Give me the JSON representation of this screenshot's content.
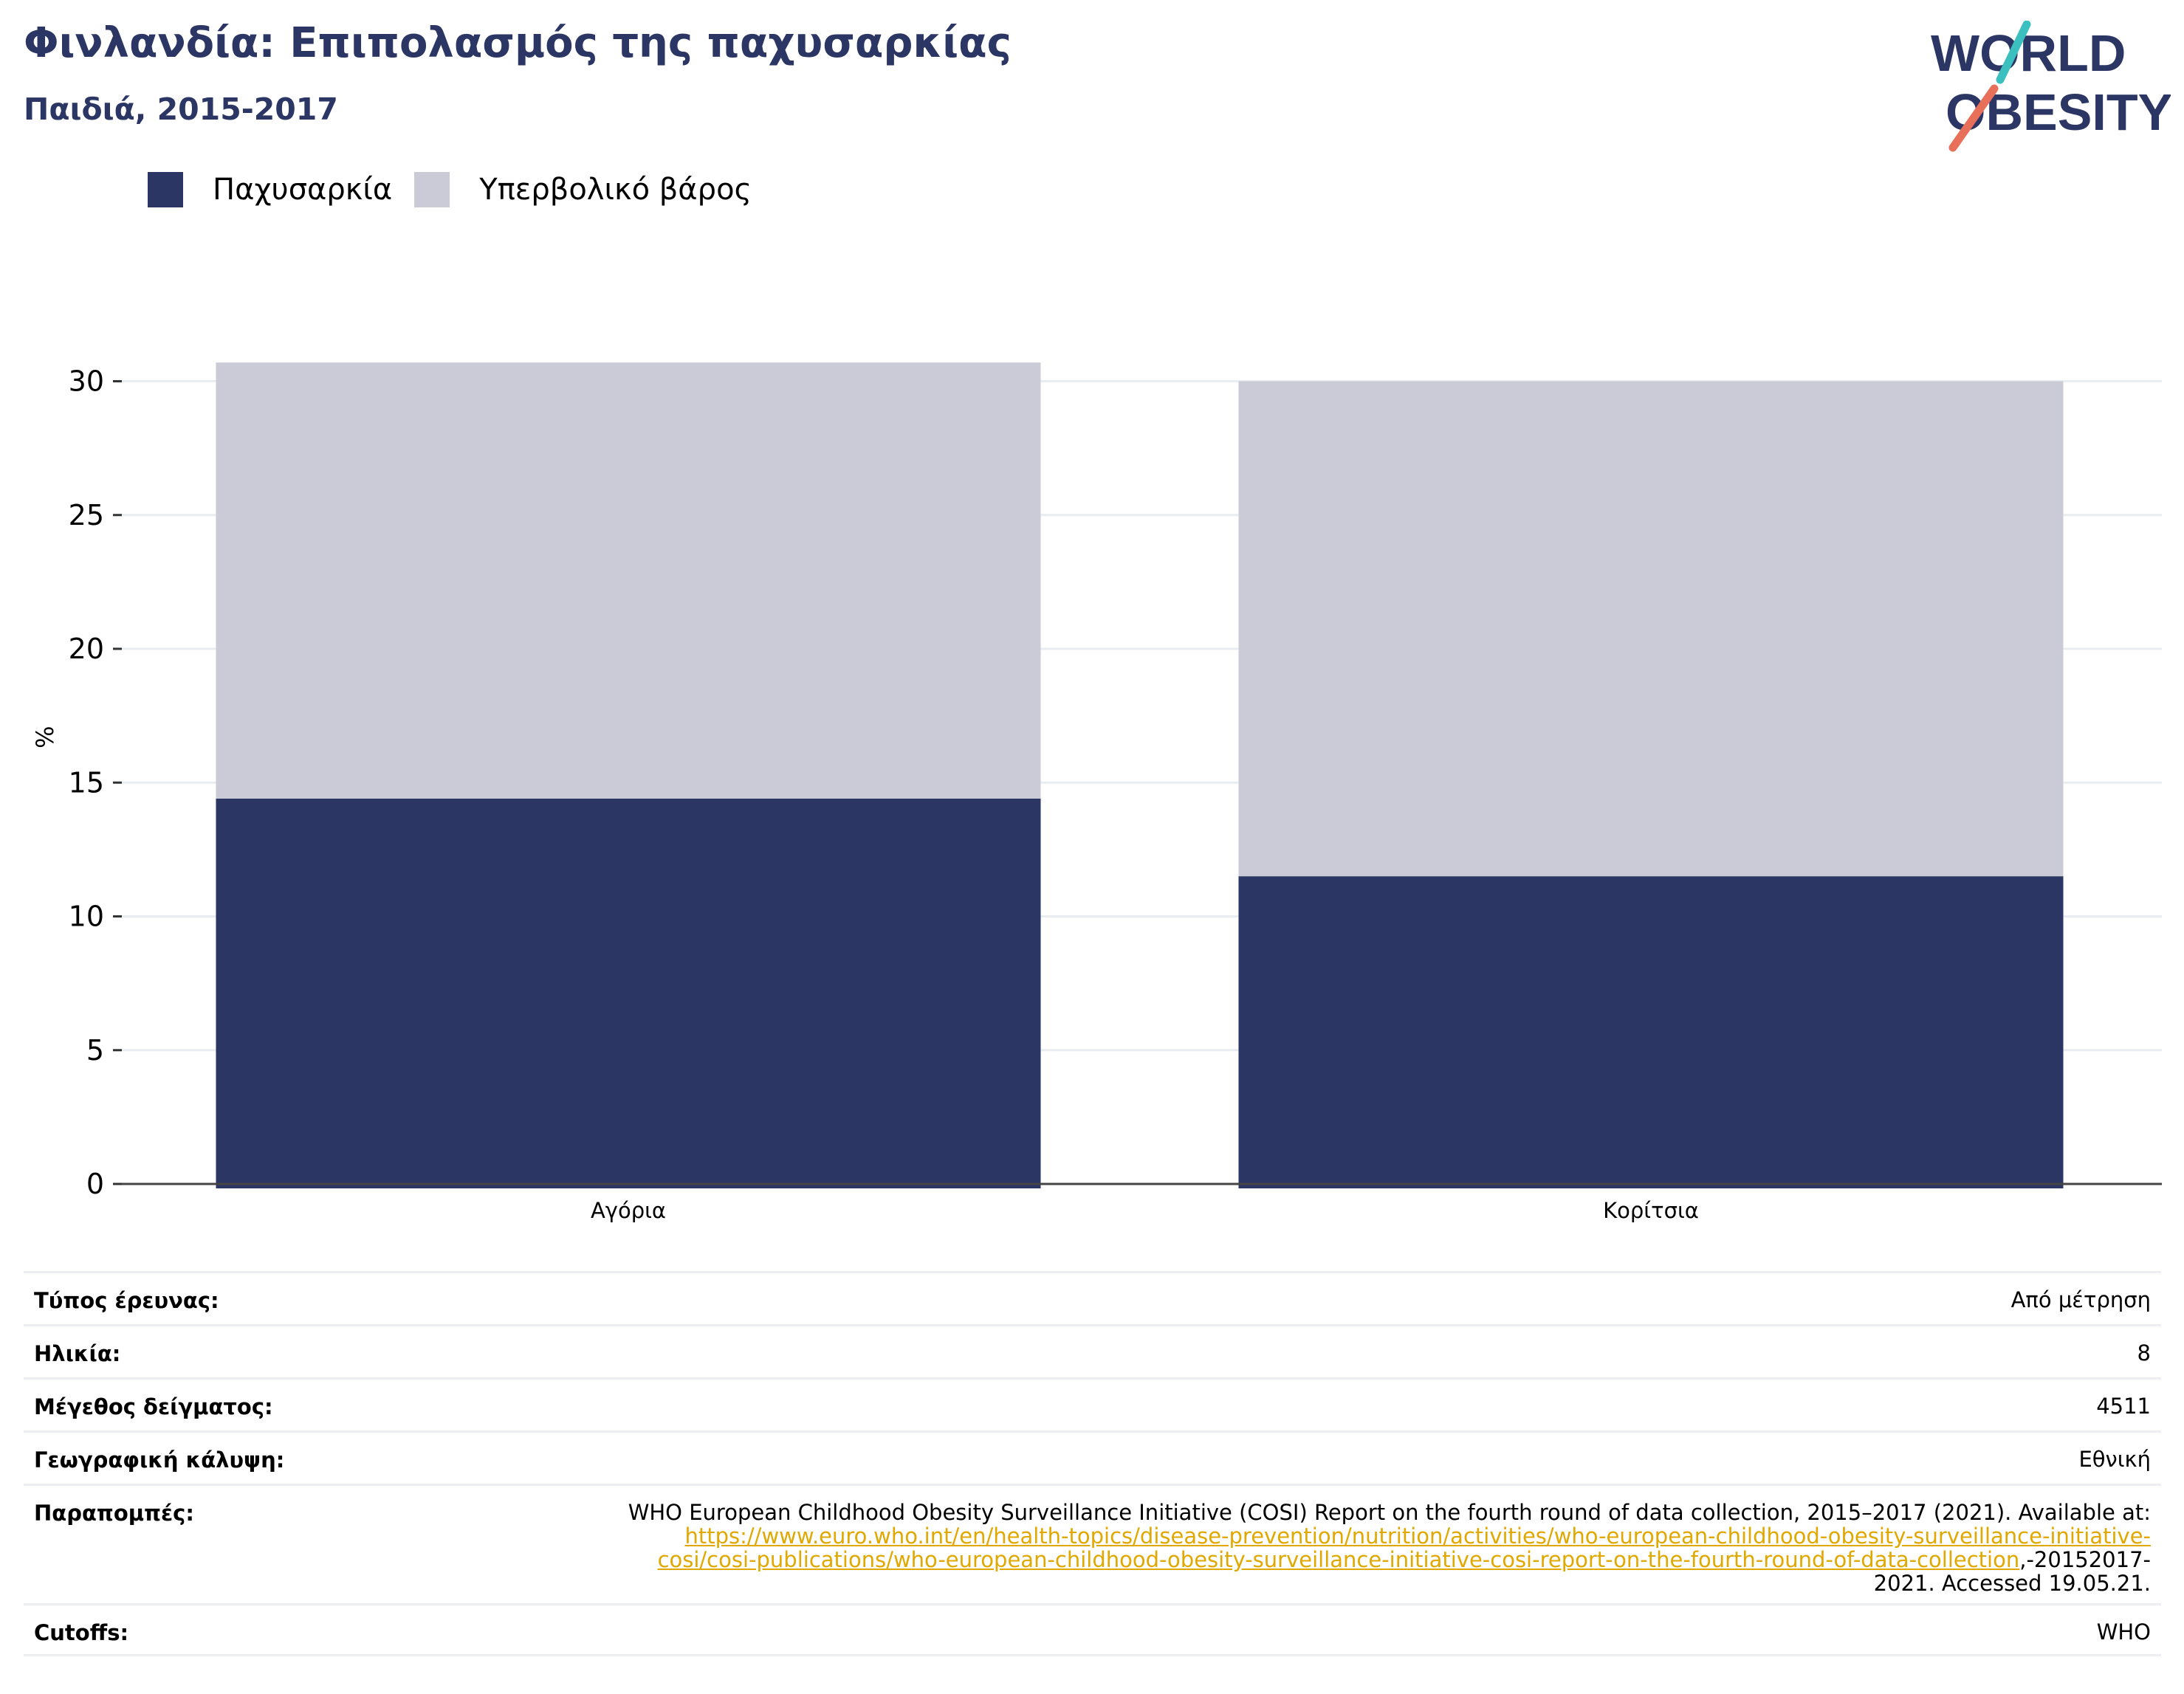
{
  "header": {
    "title": "Φινλανδία: Επιπολασμός της παχυσαρκίας",
    "subtitle": "Παιδιά, 2015-2017"
  },
  "logo": {
    "line1": "WORLD",
    "line2": "OBESITY",
    "colors": {
      "text": "#2b3664",
      "slash_top": "#3cbfbf",
      "slash_bottom": "#e8705a"
    }
  },
  "legend": [
    {
      "label": "Παχυσαρκία",
      "color": "#2b3664"
    },
    {
      "label": "Υπερβολικό βάρος",
      "color": "#cacbd7"
    }
  ],
  "chart_data": {
    "type": "bar",
    "stacked": true,
    "categories": [
      "Αγόρια",
      "Κορίτσια"
    ],
    "series": [
      {
        "name": "Παχυσαρκία",
        "values": [
          14.4,
          11.5
        ],
        "color": "#2b3664"
      },
      {
        "name": "Υπερβολικό βάρος",
        "values": [
          16.3,
          18.5
        ],
        "color": "#cacbd7"
      }
    ],
    "ylabel": "%",
    "ylim": [
      0,
      30
    ],
    "yticks": [
      0,
      5,
      10,
      15,
      20,
      25,
      30
    ],
    "grid": true,
    "legend_position": "top-left"
  },
  "info": {
    "survey_type": {
      "label": "Τύπος έρευνας:",
      "value": "Από μέτρηση"
    },
    "age": {
      "label": "Ηλικία:",
      "value": "8"
    },
    "sample_size": {
      "label": "Μέγεθος δείγματος:",
      "value": "4511"
    },
    "coverage": {
      "label": "Γεωγραφική κάλυψη:",
      "value": "Εθνική"
    },
    "references": {
      "label": "Παραπομπές:",
      "text_before": "WHO European Childhood Obesity Surveillance Initiative (COSI) Report on the fourth round of data collection, 2015–2017 (2021). Available at:",
      "link_line1": "https://www.euro.who.int/en/health-topics/disease-prevention/nutrition/activities/who-european-childhood-obesity-surveillance-initiative-",
      "link_line2": "cosi/cosi-publications/who-european-childhood-obesity-surveillance-initiative-cosi-report-on-the-fourth-round-of-data-collection",
      "text_after_line2": ",-20152017-",
      "text_after_line3": "2021. Accessed 19.05.21."
    },
    "cutoffs": {
      "label": "Cutoffs:",
      "value": "WHO"
    }
  }
}
